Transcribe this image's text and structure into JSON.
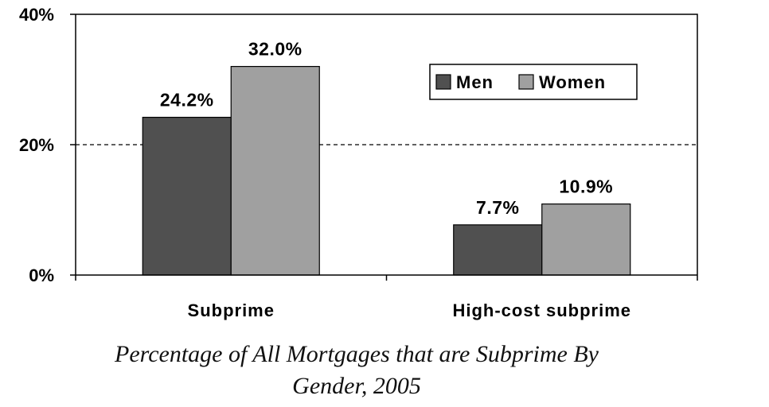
{
  "chart_data": {
    "type": "bar",
    "categories": [
      "Subprime",
      "High-cost subprime"
    ],
    "series": [
      {
        "name": "Men",
        "values": [
          24.2,
          7.7
        ],
        "labels": [
          "24.2%",
          "7.7%"
        ],
        "color": "#505050"
      },
      {
        "name": "Women",
        "values": [
          32.0,
          10.9
        ],
        "labels": [
          "32.0%",
          "10.9%"
        ],
        "color": "#a0a0a0"
      }
    ],
    "ylim": [
      0,
      40
    ],
    "yticks": [
      0,
      20,
      40
    ],
    "ytick_labels": [
      "0%",
      "20%",
      "40%"
    ],
    "gridlines": [
      20
    ],
    "grid_style": "dashed",
    "legend": "top-right",
    "xlabel": "",
    "ylabel": ""
  },
  "caption": {
    "line1": "Percentage of All Mortgages that are Subprime By",
    "line2": "Gender, 2005"
  }
}
